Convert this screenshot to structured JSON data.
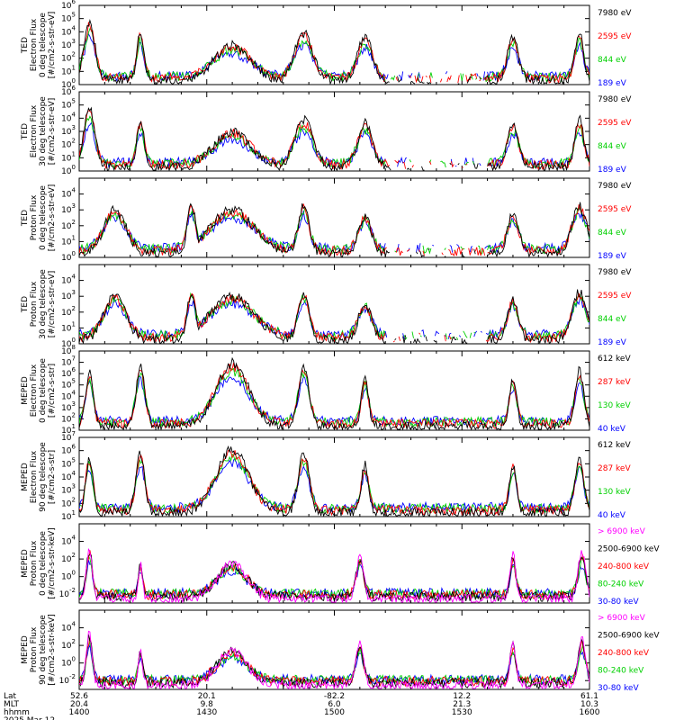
{
  "chart_data": {
    "type": "line",
    "title": "",
    "date": "2025 Mar 12",
    "x_axis": {
      "rows": [
        {
          "label": "Lat",
          "values": [
            "52.6",
            "20.1",
            "-82.2",
            "12.2",
            "61.1"
          ]
        },
        {
          "label": "MLT",
          "values": [
            "20.4",
            "9.8",
            "6.0",
            "21.3",
            "10.3"
          ]
        },
        {
          "label": "hhmm",
          "values": [
            "1400",
            "1430",
            "1500",
            "1530",
            "1600"
          ]
        }
      ]
    },
    "panels": [
      {
        "id": "ted-e-0",
        "ylabel": [
          "TED",
          "Electron Flux",
          "0 deg telescope",
          "[#/cm2-s-str-eV]"
        ],
        "ylim_exp": [
          0,
          6
        ],
        "tick_exps": [
          0,
          1,
          2,
          3,
          4,
          5,
          6
        ],
        "series": [
          {
            "name": "7980 eV",
            "color": "#000000"
          },
          {
            "name": "2595 eV",
            "color": "#ff0000"
          },
          {
            "name": "844 eV",
            "color": "#00d000"
          },
          {
            "name": "189 eV",
            "color": "#0000ff"
          }
        ]
      },
      {
        "id": "ted-e-30",
        "ylabel": [
          "TED",
          "Electron Flux",
          "30 deg telescope",
          "[#/cm2-s-str-eV]"
        ],
        "ylim_exp": [
          0,
          6
        ],
        "tick_exps": [
          0,
          1,
          2,
          3,
          4,
          5,
          6
        ],
        "series": [
          {
            "name": "7980 eV",
            "color": "#000000"
          },
          {
            "name": "2595 eV",
            "color": "#ff0000"
          },
          {
            "name": "844 eV",
            "color": "#00d000"
          },
          {
            "name": "189 eV",
            "color": "#0000ff"
          }
        ]
      },
      {
        "id": "ted-p-0",
        "ylabel": [
          "TED",
          "Proton Flux",
          "0 deg telescope",
          "[#/cm2-s-str-eV]"
        ],
        "ylim_exp": [
          0,
          5
        ],
        "tick_exps": [
          0,
          1,
          2,
          3,
          4
        ],
        "series": [
          {
            "name": "7980 eV",
            "color": "#000000"
          },
          {
            "name": "2595 eV",
            "color": "#ff0000"
          },
          {
            "name": "844 eV",
            "color": "#00d000"
          },
          {
            "name": "189 eV",
            "color": "#0000ff"
          }
        ]
      },
      {
        "id": "ted-p-30",
        "ylabel": [
          "TED",
          "Proton Flux",
          "30 deg telescope",
          "[#/cm2-s-str-eV]"
        ],
        "ylim_exp": [
          0,
          5
        ],
        "tick_exps": [
          0,
          1,
          2,
          3,
          4
        ],
        "series": [
          {
            "name": "7980 eV",
            "color": "#000000"
          },
          {
            "name": "2595 eV",
            "color": "#ff0000"
          },
          {
            "name": "844 eV",
            "color": "#00d000"
          },
          {
            "name": "189 eV",
            "color": "#0000ff"
          }
        ]
      },
      {
        "id": "meped-e-0",
        "ylabel": [
          "MEPED",
          "Electron Flux",
          "0 deg telescope",
          "[#/cm2-s-str]"
        ],
        "ylim_exp": [
          1,
          8
        ],
        "tick_exps": [
          1,
          2,
          3,
          4,
          5,
          6,
          7,
          8
        ],
        "series": [
          {
            "name": "612 keV",
            "color": "#000000"
          },
          {
            "name": "287 keV",
            "color": "#ff0000"
          },
          {
            "name": "130 keV",
            "color": "#00d000"
          },
          {
            "name": "40 keV",
            "color": "#0000ff"
          }
        ]
      },
      {
        "id": "meped-e-90",
        "ylabel": [
          "MEPED",
          "Electron Flux",
          "90 deg telescope",
          "[#/cm2-s-str]"
        ],
        "ylim_exp": [
          1,
          7
        ],
        "tick_exps": [
          1,
          2,
          3,
          4,
          5,
          6,
          7
        ],
        "series": [
          {
            "name": "612 keV",
            "color": "#000000"
          },
          {
            "name": "287 keV",
            "color": "#ff0000"
          },
          {
            "name": "130 keV",
            "color": "#00d000"
          },
          {
            "name": "40 keV",
            "color": "#0000ff"
          }
        ]
      },
      {
        "id": "meped-p-0",
        "ylabel": [
          "MEPED",
          "Proton Flux",
          "0 deg telescope",
          "[#/cm2-s-str-keV]"
        ],
        "ylim_exp": [
          -3,
          6
        ],
        "tick_exps": [
          -2,
          0,
          2,
          4
        ],
        "series": [
          {
            "name": "> 6900 keV",
            "color": "#ff00ff"
          },
          {
            "name": "2500-6900 keV",
            "color": "#000000"
          },
          {
            "name": "240-800 keV",
            "color": "#ff0000"
          },
          {
            "name": "80-240 keV",
            "color": "#00d000"
          },
          {
            "name": "30-80 keV",
            "color": "#0000ff"
          }
        ]
      },
      {
        "id": "meped-p-90",
        "ylabel": [
          "MEPED",
          "Proton Flux",
          "90 deg telescope",
          "[#/cm2-s-str-keV]"
        ],
        "ylim_exp": [
          -3,
          6
        ],
        "tick_exps": [
          -2,
          0,
          2,
          4
        ],
        "series": [
          {
            "name": "> 6900 keV",
            "color": "#ff00ff"
          },
          {
            "name": "2500-6900 keV",
            "color": "#000000"
          },
          {
            "name": "240-800 keV",
            "color": "#ff0000"
          },
          {
            "name": "80-240 keV",
            "color": "#00d000"
          },
          {
            "name": "30-80 keV",
            "color": "#0000ff"
          }
        ]
      }
    ]
  }
}
